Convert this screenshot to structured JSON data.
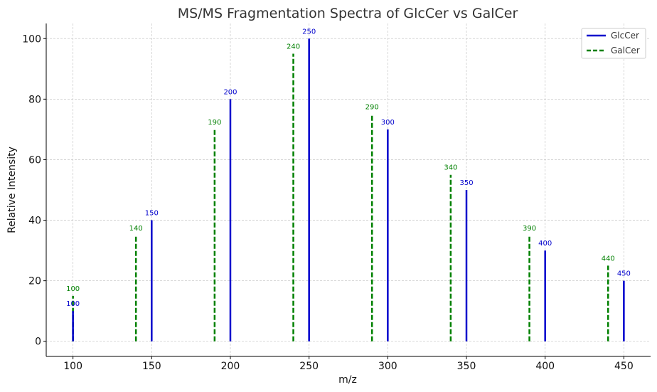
{
  "colors": {
    "glccer": "#0000cc",
    "galcer": "#008000",
    "grid": "#cccccc"
  },
  "chart_data": {
    "type": "bar",
    "title": "MS/MS Fragmentation Spectra of GlcCer vs GalCer",
    "xlabel": "m/z",
    "ylabel": "Relative Intensity",
    "xlim": [
      83,
      467
    ],
    "ylim": [
      -5,
      105
    ],
    "xticks": [
      100,
      150,
      200,
      250,
      300,
      350,
      400,
      450
    ],
    "yticks": [
      0,
      20,
      40,
      60,
      80,
      100
    ],
    "grid": true,
    "legend_position": "top-right",
    "series": [
      {
        "name": "GlcCer",
        "style": "solid",
        "x": [
          100,
          150,
          200,
          250,
          300,
          350,
          400,
          450
        ],
        "values": [
          10,
          40,
          80,
          100,
          70,
          50,
          30,
          20
        ],
        "labels": [
          "100",
          "150",
          "200",
          "250",
          "300",
          "350",
          "400",
          "450"
        ]
      },
      {
        "name": "GalCer",
        "style": "dashed",
        "x": [
          100,
          140,
          190,
          240,
          290,
          340,
          390,
          440
        ],
        "values": [
          15,
          35,
          70,
          95,
          75,
          55,
          35,
          25
        ],
        "labels": [
          "100",
          "140",
          "190",
          "240",
          "290",
          "340",
          "390",
          "440"
        ]
      }
    ]
  }
}
